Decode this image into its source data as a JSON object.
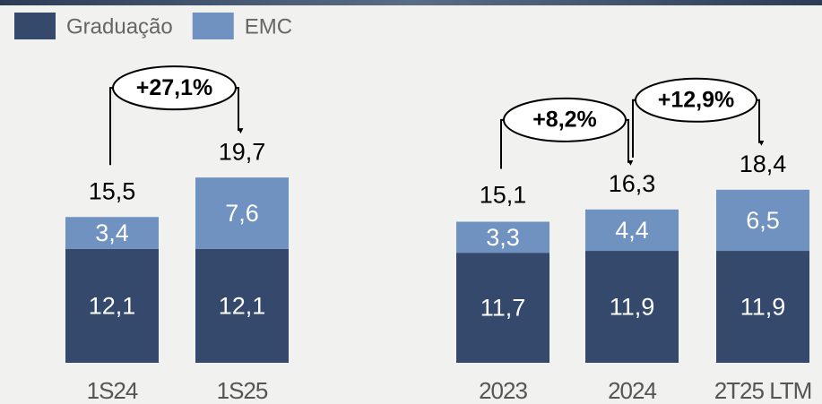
{
  "chart_data": {
    "type": "stacked_bar",
    "categories": [
      "1S24",
      "1S25",
      "2023",
      "2024",
      "2T25 LTM"
    ],
    "series": [
      {
        "name": "Graduação",
        "color": "#34496b",
        "values": [
          12.1,
          12.1,
          11.7,
          11.9,
          11.9
        ],
        "value_labels": [
          "12,1",
          "12,1",
          "11,7",
          "11,9",
          "11,9"
        ]
      },
      {
        "name": "EMC",
        "color": "#7092c0",
        "values": [
          3.4,
          7.6,
          3.3,
          4.4,
          6.5
        ],
        "value_labels": [
          "3,4",
          "7,6",
          "3,3",
          "4,4",
          "6,5"
        ]
      }
    ],
    "totals": [
      15.5,
      19.7,
      15.1,
      16.3,
      18.4
    ],
    "total_labels": [
      "15,5",
      "19,7",
      "15,1",
      "16,3",
      "18,4"
    ],
    "annotations": [
      {
        "text": "+27,1%",
        "from": 0,
        "to": 1
      },
      {
        "text": "+8,2%",
        "from": 2,
        "to": 3
      },
      {
        "text": "+12,9%",
        "from": 3,
        "to": 4
      }
    ]
  }
}
